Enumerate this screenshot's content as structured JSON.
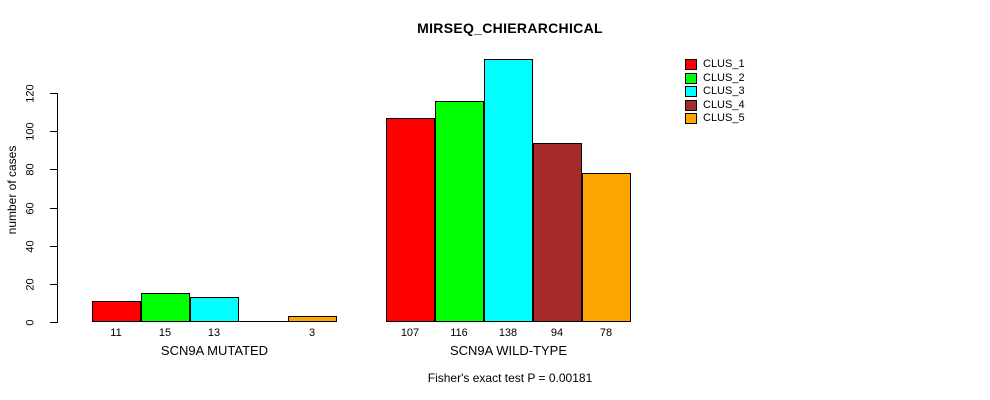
{
  "title": "MIRSEQ_CHIERARCHICAL",
  "footer": "Fisher's exact test P = 0.00181",
  "chart_data": {
    "type": "bar",
    "title": "MIRSEQ_CHIERARCHICAL",
    "xlabel": "",
    "ylabel": "number of cases",
    "ylim": [
      0,
      138
    ],
    "yticks": [
      0,
      20,
      40,
      60,
      80,
      100,
      120
    ],
    "grid": false,
    "categories": [
      "SCN9A MUTATED",
      "SCN9A WILD-TYPE"
    ],
    "series": [
      {
        "name": "CLUS_1",
        "color": "#FF0000",
        "values": [
          11,
          107
        ]
      },
      {
        "name": "CLUS_2",
        "color": "#00FF00",
        "values": [
          15,
          116
        ]
      },
      {
        "name": "CLUS_3",
        "color": "#00FFFF",
        "values": [
          13,
          138
        ]
      },
      {
        "name": "CLUS_4",
        "color": "#A52A2A",
        "values": [
          0,
          94
        ]
      },
      {
        "name": "CLUS_5",
        "color": "#FFA500",
        "values": [
          3,
          78
        ]
      }
    ],
    "bar_value_labels": [
      [
        "11",
        "15",
        "13",
        "",
        "3"
      ],
      [
        "107",
        "116",
        "138",
        "94",
        "78"
      ]
    ],
    "legend": {
      "position": "top-right",
      "entries": [
        "CLUS_1",
        "CLUS_2",
        "CLUS_3",
        "CLUS_4",
        "CLUS_5"
      ]
    },
    "annotation": "Fisher's exact test P = 0.00181",
    "axis_color": "#000000",
    "bar_border_color": "#000000",
    "background_color": "#FFFFFF"
  }
}
